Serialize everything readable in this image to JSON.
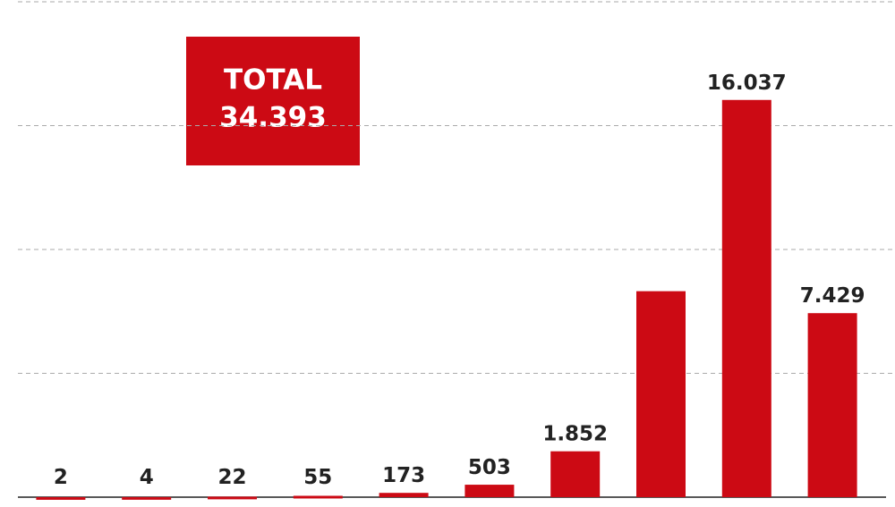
{
  "chart_data": {
    "type": "bar",
    "annotation": {
      "label": "TOTAL",
      "value": "34.393"
    },
    "categories": [
      null,
      null,
      null,
      null,
      null,
      null,
      null,
      null,
      null,
      null
    ],
    "values": [
      2,
      4,
      22,
      55,
      173,
      503,
      1852,
      8316,
      16037,
      7429
    ],
    "value_labels": [
      "2",
      "4",
      "22",
      "55",
      "173",
      "503",
      "1.852",
      null,
      "16.037",
      "7.429"
    ],
    "color": "#cc0a14",
    "ylim": [
      0,
      20000
    ],
    "yticks": [
      0,
      5000,
      10000,
      15000,
      20000
    ],
    "grid": true
  }
}
